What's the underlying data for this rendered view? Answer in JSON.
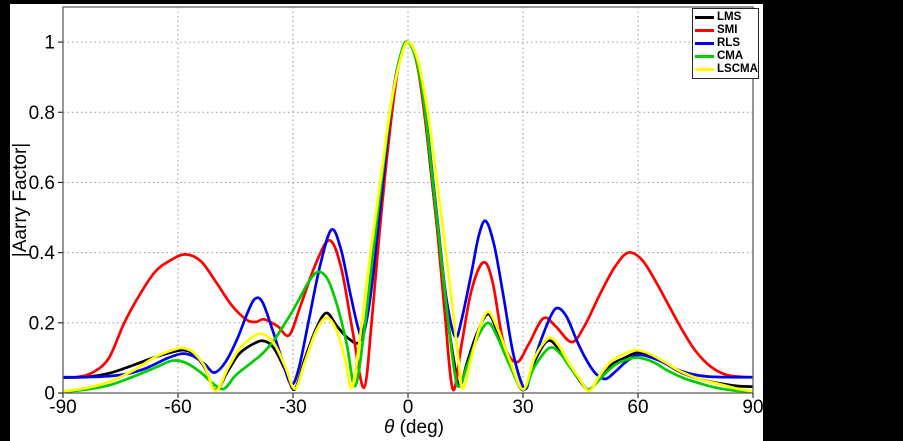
{
  "figure": {
    "outer_background": "#000000",
    "canvas_background": "#ffffff",
    "border_color": "#5f5f5f",
    "grid_color": "#9a9a9a",
    "tick_color": "#333333",
    "text_color": "#000000",
    "legend_border_color": "#262626"
  },
  "chart_data": {
    "type": "line",
    "title": "",
    "xlabel": "θ (deg)",
    "xlabel_theta": "θ",
    "xlabel_unit": " (deg)",
    "ylabel": "|Aarry Factor|",
    "xlim": [
      -90,
      90
    ],
    "ylim": [
      0,
      1.1
    ],
    "xticks": [
      -90,
      -60,
      -30,
      0,
      30,
      60,
      90
    ],
    "yticks": [
      0,
      0.2,
      0.4,
      0.6,
      0.8,
      1
    ],
    "xtick_labels": [
      "-90",
      "-60",
      "-30",
      "0",
      "30",
      "60",
      "90"
    ],
    "ytick_labels": [
      "0",
      "0.2",
      "0.4",
      "0.6",
      "0.8",
      "1"
    ],
    "grid": "on",
    "legend_position": "top-right",
    "series": [
      {
        "name": "LMS",
        "color": "#000000",
        "points": [
          [
            -90,
            0.044
          ],
          [
            -84,
            0.046
          ],
          [
            -78,
            0.056
          ],
          [
            -72,
            0.078
          ],
          [
            -66,
            0.102
          ],
          [
            -61,
            0.118
          ],
          [
            -58.5,
            0.122
          ],
          [
            -56,
            0.112
          ],
          [
            -53,
            0.072
          ],
          [
            -50.2,
            0.008
          ],
          [
            -47,
            0.062
          ],
          [
            -44,
            0.112
          ],
          [
            -40,
            0.142
          ],
          [
            -37.5,
            0.148
          ],
          [
            -35,
            0.128
          ],
          [
            -32,
            0.065
          ],
          [
            -29.6,
            0.01
          ],
          [
            -27,
            0.095
          ],
          [
            -24,
            0.182
          ],
          [
            -21.3,
            0.228
          ],
          [
            -18.5,
            0.19
          ],
          [
            -15.5,
            0.155
          ],
          [
            -12.5,
            0.15
          ],
          [
            -10,
            0.27
          ],
          [
            -8,
            0.44
          ],
          [
            -6,
            0.64
          ],
          [
            -4,
            0.83
          ],
          [
            -2,
            0.955
          ],
          [
            0,
            1
          ],
          [
            2,
            0.955
          ],
          [
            4,
            0.83
          ],
          [
            6,
            0.63
          ],
          [
            8,
            0.43
          ],
          [
            10,
            0.24
          ],
          [
            12,
            0.09
          ],
          [
            13.5,
            0.02
          ],
          [
            15.5,
            0.09
          ],
          [
            18,
            0.17
          ],
          [
            20.9,
            0.225
          ],
          [
            23.5,
            0.17
          ],
          [
            26.5,
            0.09
          ],
          [
            30,
            0.008
          ],
          [
            33,
            0.09
          ],
          [
            36.3,
            0.148
          ],
          [
            39,
            0.13
          ],
          [
            42,
            0.08
          ],
          [
            44.5,
            0.04
          ],
          [
            47.2,
            0.008
          ],
          [
            50,
            0.045
          ],
          [
            53,
            0.08
          ],
          [
            56.5,
            0.1
          ],
          [
            60,
            0.115
          ],
          [
            63.5,
            0.105
          ],
          [
            67,
            0.085
          ],
          [
            71,
            0.06
          ],
          [
            76,
            0.04
          ],
          [
            81,
            0.028
          ],
          [
            86,
            0.02
          ],
          [
            90,
            0.018
          ]
        ]
      },
      {
        "name": "SMI",
        "color": "#ff0000",
        "points": [
          [
            -90,
            0.045
          ],
          [
            -86,
            0.046
          ],
          [
            -82,
            0.06
          ],
          [
            -78,
            0.1
          ],
          [
            -74,
            0.2
          ],
          [
            -70,
            0.28
          ],
          [
            -66,
            0.345
          ],
          [
            -62,
            0.378
          ],
          [
            -58,
            0.395
          ],
          [
            -54,
            0.375
          ],
          [
            -50,
            0.315
          ],
          [
            -46,
            0.25
          ],
          [
            -42,
            0.208
          ],
          [
            -39.5,
            0.203
          ],
          [
            -37.5,
            0.21
          ],
          [
            -34,
            0.19
          ],
          [
            -31,
            0.165
          ],
          [
            -28,
            0.25
          ],
          [
            -24,
            0.37
          ],
          [
            -20.5,
            0.435
          ],
          [
            -17.5,
            0.36
          ],
          [
            -14.5,
            0.18
          ],
          [
            -11.5,
            0.015
          ],
          [
            -9.5,
            0.2
          ],
          [
            -7.5,
            0.45
          ],
          [
            -5,
            0.72
          ],
          [
            -2.5,
            0.93
          ],
          [
            0,
            1
          ],
          [
            2.5,
            0.93
          ],
          [
            5,
            0.73
          ],
          [
            7.5,
            0.48
          ],
          [
            9.5,
            0.24
          ],
          [
            11.7,
            0.01
          ],
          [
            14,
            0.14
          ],
          [
            16.5,
            0.29
          ],
          [
            19.6,
            0.372
          ],
          [
            22,
            0.32
          ],
          [
            25,
            0.14
          ],
          [
            28.4,
            0.088
          ],
          [
            31.5,
            0.14
          ],
          [
            35.3,
            0.213
          ],
          [
            38.5,
            0.19
          ],
          [
            42.7,
            0.145
          ],
          [
            46,
            0.19
          ],
          [
            50,
            0.28
          ],
          [
            54,
            0.36
          ],
          [
            57.5,
            0.4
          ],
          [
            61,
            0.38
          ],
          [
            64.5,
            0.32
          ],
          [
            68,
            0.25
          ],
          [
            71.5,
            0.18
          ],
          [
            75,
            0.12
          ],
          [
            79,
            0.075
          ],
          [
            83,
            0.052
          ],
          [
            87,
            0.046
          ],
          [
            90,
            0.045
          ]
        ]
      },
      {
        "name": "RLS",
        "color": "#0000ee",
        "points": [
          [
            -90,
            0.045
          ],
          [
            -84,
            0.045
          ],
          [
            -78,
            0.048
          ],
          [
            -73,
            0.055
          ],
          [
            -68,
            0.072
          ],
          [
            -63,
            0.098
          ],
          [
            -59,
            0.112
          ],
          [
            -56,
            0.105
          ],
          [
            -53,
            0.082
          ],
          [
            -50.5,
            0.058
          ],
          [
            -47.5,
            0.09
          ],
          [
            -44.5,
            0.155
          ],
          [
            -42,
            0.225
          ],
          [
            -40,
            0.268
          ],
          [
            -38,
            0.26
          ],
          [
            -35.5,
            0.185
          ],
          [
            -33,
            0.1
          ],
          [
            -30.5,
            0.025
          ],
          [
            -28.5,
            0.07
          ],
          [
            -26,
            0.2
          ],
          [
            -23,
            0.36
          ],
          [
            -20,
            0.465
          ],
          [
            -17.5,
            0.41
          ],
          [
            -15,
            0.28
          ],
          [
            -13,
            0.185
          ],
          [
            -11.8,
            0.162
          ],
          [
            -10,
            0.26
          ],
          [
            -8,
            0.45
          ],
          [
            -6,
            0.66
          ],
          [
            -4,
            0.85
          ],
          [
            -2,
            0.96
          ],
          [
            0,
            1
          ],
          [
            2,
            0.96
          ],
          [
            4,
            0.85
          ],
          [
            6,
            0.66
          ],
          [
            8,
            0.46
          ],
          [
            10,
            0.27
          ],
          [
            12.3,
            0.16
          ],
          [
            14,
            0.21
          ],
          [
            16.5,
            0.34
          ],
          [
            18.5,
            0.45
          ],
          [
            20.3,
            0.49
          ],
          [
            22.5,
            0.42
          ],
          [
            25,
            0.27
          ],
          [
            27.5,
            0.11
          ],
          [
            30.5,
            0.012
          ],
          [
            32.5,
            0.08
          ],
          [
            35,
            0.16
          ],
          [
            37.5,
            0.225
          ],
          [
            39.2,
            0.242
          ],
          [
            41.5,
            0.215
          ],
          [
            44,
            0.15
          ],
          [
            46.5,
            0.095
          ],
          [
            49,
            0.055
          ],
          [
            51.5,
            0.04
          ],
          [
            54,
            0.06
          ],
          [
            57,
            0.09
          ],
          [
            60,
            0.108
          ],
          [
            63,
            0.103
          ],
          [
            66.5,
            0.088
          ],
          [
            70,
            0.068
          ],
          [
            74,
            0.054
          ],
          [
            78,
            0.047
          ],
          [
            84,
            0.045
          ],
          [
            90,
            0.045
          ]
        ]
      },
      {
        "name": "CMA",
        "color": "#00cc00",
        "points": [
          [
            -90,
            0.003
          ],
          [
            -84,
            0.01
          ],
          [
            -78,
            0.022
          ],
          [
            -72,
            0.045
          ],
          [
            -66,
            0.072
          ],
          [
            -61.5,
            0.092
          ],
          [
            -58,
            0.086
          ],
          [
            -54,
            0.058
          ],
          [
            -51,
            0.028
          ],
          [
            -48,
            0.012
          ],
          [
            -45,
            0.05
          ],
          [
            -41,
            0.085
          ],
          [
            -38,
            0.112
          ],
          [
            -35,
            0.15
          ],
          [
            -32,
            0.2
          ],
          [
            -29,
            0.255
          ],
          [
            -26,
            0.315
          ],
          [
            -23.5,
            0.345
          ],
          [
            -21,
            0.325
          ],
          [
            -18.5,
            0.25
          ],
          [
            -16,
            0.14
          ],
          [
            -13.8,
            0.02
          ],
          [
            -11.5,
            0.17
          ],
          [
            -9.5,
            0.36
          ],
          [
            -7.5,
            0.55
          ],
          [
            -5.5,
            0.73
          ],
          [
            -3.5,
            0.88
          ],
          [
            -1.5,
            0.98
          ],
          [
            0,
            1
          ],
          [
            2,
            0.955
          ],
          [
            4,
            0.84
          ],
          [
            6,
            0.65
          ],
          [
            8,
            0.45
          ],
          [
            10,
            0.25
          ],
          [
            12,
            0.07
          ],
          [
            13.3,
            0.018
          ],
          [
            15.5,
            0.08
          ],
          [
            18,
            0.155
          ],
          [
            20.9,
            0.2
          ],
          [
            23.5,
            0.155
          ],
          [
            26.5,
            0.08
          ],
          [
            30,
            0.01
          ],
          [
            33,
            0.075
          ],
          [
            36.8,
            0.128
          ],
          [
            39.5,
            0.115
          ],
          [
            42.5,
            0.07
          ],
          [
            45,
            0.035
          ],
          [
            47.2,
            0.01
          ],
          [
            50.5,
            0.045
          ],
          [
            54,
            0.08
          ],
          [
            58,
            0.098
          ],
          [
            60.5,
            0.1
          ],
          [
            64,
            0.088
          ],
          [
            68,
            0.062
          ],
          [
            72,
            0.042
          ],
          [
            76,
            0.028
          ],
          [
            80,
            0.016
          ],
          [
            85,
            0.007
          ],
          [
            90,
            0.004
          ]
        ]
      },
      {
        "name": "LSCMA",
        "color": "#ffff00",
        "points": [
          [
            -90,
            0.005
          ],
          [
            -84,
            0.014
          ],
          [
            -78,
            0.032
          ],
          [
            -72,
            0.062
          ],
          [
            -66,
            0.102
          ],
          [
            -61,
            0.124
          ],
          [
            -58.7,
            0.128
          ],
          [
            -56,
            0.116
          ],
          [
            -53,
            0.075
          ],
          [
            -50.2,
            0.006
          ],
          [
            -47,
            0.07
          ],
          [
            -44,
            0.125
          ],
          [
            -40.5,
            0.16
          ],
          [
            -38,
            0.168
          ],
          [
            -35,
            0.142
          ],
          [
            -32,
            0.075
          ],
          [
            -29.5,
            0.012
          ],
          [
            -27,
            0.085
          ],
          [
            -24,
            0.175
          ],
          [
            -21.2,
            0.215
          ],
          [
            -18.5,
            0.175
          ],
          [
            -16.3,
            0.09
          ],
          [
            -14.6,
            0.015
          ],
          [
            -12.5,
            0.16
          ],
          [
            -10.5,
            0.34
          ],
          [
            -8.5,
            0.5
          ],
          [
            -6.5,
            0.66
          ],
          [
            -4.5,
            0.82
          ],
          [
            -2,
            0.95
          ],
          [
            0,
            1
          ],
          [
            2.5,
            0.95
          ],
          [
            5,
            0.81
          ],
          [
            7,
            0.65
          ],
          [
            9,
            0.48
          ],
          [
            11,
            0.3
          ],
          [
            13,
            0.11
          ],
          [
            14.3,
            0.012
          ],
          [
            16.5,
            0.1
          ],
          [
            18.5,
            0.18
          ],
          [
            20.9,
            0.232
          ],
          [
            23.5,
            0.18
          ],
          [
            26.5,
            0.095
          ],
          [
            30,
            0.01
          ],
          [
            33,
            0.1
          ],
          [
            36.6,
            0.156
          ],
          [
            39,
            0.14
          ],
          [
            42,
            0.085
          ],
          [
            44.5,
            0.045
          ],
          [
            47.2,
            0.006
          ],
          [
            50,
            0.05
          ],
          [
            53,
            0.09
          ],
          [
            56.5,
            0.112
          ],
          [
            59.5,
            0.122
          ],
          [
            63,
            0.112
          ],
          [
            67,
            0.088
          ],
          [
            71,
            0.062
          ],
          [
            76,
            0.04
          ],
          [
            81,
            0.026
          ],
          [
            86,
            0.012
          ],
          [
            90,
            0.005
          ]
        ]
      }
    ]
  }
}
